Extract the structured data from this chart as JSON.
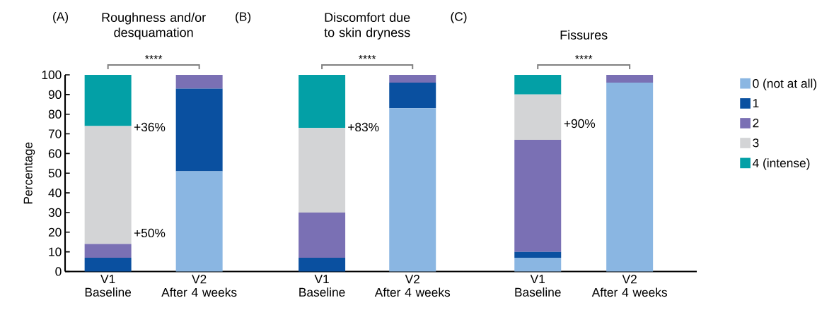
{
  "chart_data": [
    {
      "type": "bar",
      "stacked": true,
      "title": "Roughness and/or desquamation",
      "ylabel": "Percentage",
      "categories": [
        "V1\nBaseline",
        "V2\nAfter 4 weeks"
      ],
      "ylim": [
        0,
        100
      ],
      "yticks": [
        0,
        10,
        20,
        30,
        40,
        50,
        60,
        70,
        80,
        90,
        100
      ],
      "series": [
        {
          "color": "#8ab6e2",
          "values": [
            0,
            51
          ]
        },
        {
          "color": "#0a50a0",
          "values": [
            7,
            42
          ]
        },
        {
          "color": "#7a70b4",
          "values": [
            7,
            7
          ]
        },
        {
          "color": "#d3d4d6",
          "values": [
            60,
            0
          ]
        },
        {
          "color": "#03a0a6",
          "values": [
            26,
            0
          ]
        }
      ],
      "annotations": [
        "(A)",
        "****",
        "+36%",
        "+50%"
      ]
    },
    {
      "type": "bar",
      "stacked": true,
      "title": "Discomfort due to skin dryness",
      "categories": [
        "V1\nBaseline",
        "V2\nAfter 4 weeks"
      ],
      "ylim": [
        0,
        100
      ],
      "yticks": [
        0,
        10,
        20,
        30,
        40,
        50,
        60,
        70,
        80,
        90,
        100
      ],
      "tick_labels": "x",
      "series": [
        {
          "color": "#8ab6e2",
          "values": [
            0,
            83
          ]
        },
        {
          "color": "#0a50a0",
          "values": [
            7,
            13
          ]
        },
        {
          "color": "#7a70b4",
          "values": [
            23,
            4
          ]
        },
        {
          "color": "#d3d4d6",
          "values": [
            43,
            0
          ]
        },
        {
          "color": "#03a0a6",
          "values": [
            27,
            0
          ]
        }
      ],
      "annotations": [
        "(B)",
        "****",
        "+83%"
      ]
    },
    {
      "type": "bar",
      "stacked": true,
      "title": "Fissures",
      "categories": [
        "V1\nBaseline",
        "V2\nAfter 4 weeks"
      ],
      "ylim": [
        0,
        100
      ],
      "yticks": [
        0,
        10,
        20,
        30,
        40,
        50,
        60,
        70,
        80,
        90,
        100
      ],
      "tick_labels": "x",
      "legend": "right",
      "series": [
        {
          "name": "0 (not at all)",
          "color": "#8ab6e2",
          "values": [
            7,
            96
          ]
        },
        {
          "name": "1",
          "color": "#0a50a0",
          "values": [
            3,
            0
          ]
        },
        {
          "name": "2",
          "color": "#7a70b4",
          "values": [
            57,
            4
          ]
        },
        {
          "name": "3",
          "color": "#d3d4d6",
          "values": [
            23,
            0
          ]
        },
        {
          "name": "4 (intense)",
          "color": "#03a0a6",
          "values": [
            10,
            0
          ]
        }
      ],
      "annotations": [
        "(C)",
        "****",
        "+90%"
      ]
    }
  ]
}
